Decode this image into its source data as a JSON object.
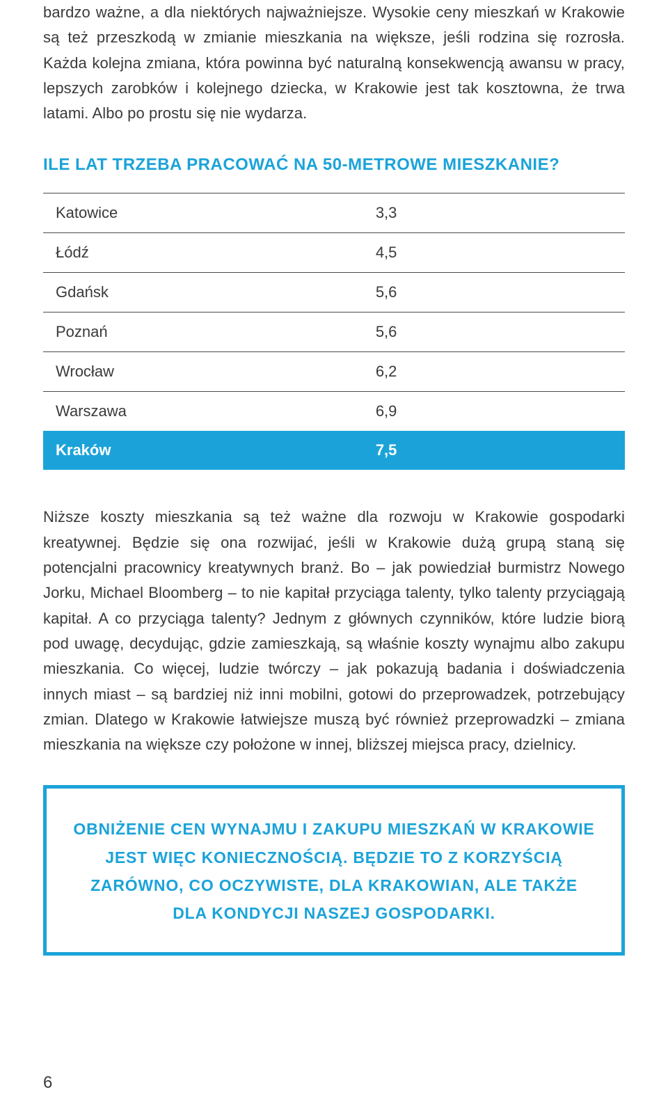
{
  "paragraph_top": "bardzo ważne, a dla niektórych najważniejsze. Wysokie ceny mieszkań w Krakowie są też przeszkodą w zmianie mieszkania na większe, jeśli rodzina się rozrosła. Każda kolejna zmiana, która powinna być naturalną konsekwencją awansu w pracy, lepszych zarobków i kolejnego dziecka, w Krakowie jest tak kosztowna, że trwa latami. Albo po prostu się nie wydarza.",
  "heading": "ILE LAT TRZEBA PRACOWAĆ NA 50-METROWE MIESZKANIE?",
  "table": {
    "type": "table",
    "columns": [
      "city",
      "years"
    ],
    "rows": [
      {
        "city": "Katowice",
        "years": "3,3",
        "highlight": false
      },
      {
        "city": "Łódź",
        "years": "4,5",
        "highlight": false
      },
      {
        "city": "Gdańsk",
        "years": "5,6",
        "highlight": false
      },
      {
        "city": "Poznań",
        "years": "5,6",
        "highlight": false
      },
      {
        "city": "Wrocław",
        "years": "6,2",
        "highlight": false
      },
      {
        "city": "Warszawa",
        "years": "6,9",
        "highlight": false
      },
      {
        "city": "Kraków",
        "years": "7,5",
        "highlight": true
      }
    ],
    "row_border_color": "#4a4a4a",
    "highlight_bg": "#1ba3d9",
    "highlight_text_color": "#ffffff",
    "text_color": "#3a3a3a",
    "font_size": 22,
    "cell_padding": 15
  },
  "paragraph_mid": "Niższe koszty mieszkania są też ważne dla rozwoju w Krakowie gospodarki kreatywnej. Będzie się ona rozwijać, jeśli w Krakowie dużą grupą staną się potencjalni pracownicy kreatywnych branż. Bo – jak powiedział burmistrz Nowego Jorku, Michael Bloomberg – to nie kapitał przyciąga talenty, tylko talenty przyciągają kapitał. A co przyciąga talenty? Jednym z głównych czynników, które ludzie biorą pod uwagę, decydując, gdzie zamieszkają, są właśnie koszty wynajmu albo zakupu mieszkania. Co więcej, ludzie twórczy – jak pokazują badania i doświadczenia innych miast – są bardziej niż inni mobilni, gotowi do przeprowadzek, potrzebujący zmian. Dlatego w Krakowie łatwiejsze muszą być również przeprowadzki – zmiana mieszkania na większe czy położone w innej, bliższej miejsca pracy, dzielnicy.",
  "callout": "OBNIŻENIE CEN WYNAJMU I ZAKUPU MIESZKAŃ W KRAKOWIE JEST WIĘC KONIECZNOŚCIĄ. BĘDZIE TO Z KORZYŚCIĄ ZARÓWNO, CO OCZYWISTE, DLA KRAKOWIAN, ALE TAKŻE DLA KONDYCJI NASZEJ GOSPODARKI.",
  "page_number": "6",
  "colors": {
    "accent": "#1ba3d9",
    "text": "#3a3a3a",
    "background": "#ffffff",
    "rule": "#4a4a4a"
  },
  "typography": {
    "body_fontsize": 22,
    "heading_fontsize": 24,
    "callout_fontsize": 23,
    "line_height": 1.65
  }
}
